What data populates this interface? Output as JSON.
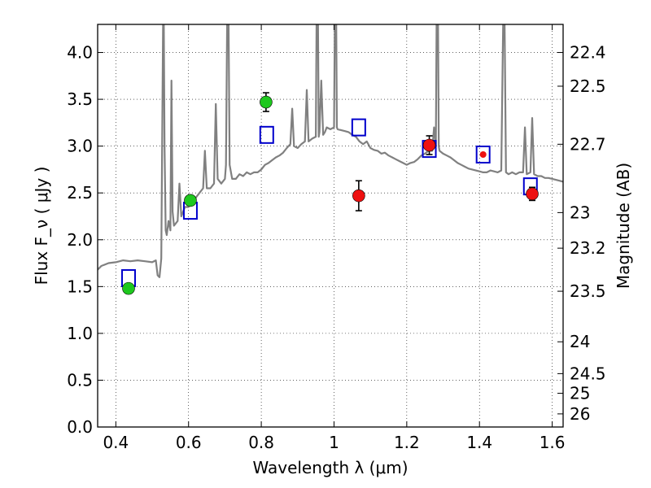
{
  "chart_data": {
    "type": "scatter",
    "title": "",
    "xlabel": "Wavelength  λ (μm)",
    "ylabel": "Flux  F_ν  ( μJy )",
    "y2label": "Magnitude (AB)",
    "xlim": [
      0.35,
      1.63
    ],
    "ylim": [
      0.0,
      4.3
    ],
    "grid": true,
    "grid_style": "dotted",
    "x_ticks": [
      0.4,
      0.6,
      0.8,
      1.0,
      1.2,
      1.4,
      1.6
    ],
    "x_tick_labels": [
      "0.4",
      "0.6",
      "0.8",
      "1",
      "1.2",
      "1.4",
      "1.6"
    ],
    "y_ticks": [
      0.0,
      0.5,
      1.0,
      1.5,
      2.0,
      2.5,
      3.0,
      3.5,
      4.0
    ],
    "y_tick_labels": [
      "0.0",
      "0.5",
      "1.0",
      "1.5",
      "2.0",
      "2.5",
      "3.0",
      "3.5",
      "4.0"
    ],
    "y2_ticks": [
      {
        "label": "22.4",
        "flux": 4.0
      },
      {
        "label": "22.5",
        "flux": 3.64
      },
      {
        "label": "22.7",
        "flux": 3.02
      },
      {
        "label": "23",
        "flux": 2.29
      },
      {
        "label": "23.2",
        "flux": 1.91
      },
      {
        "label": "23.5",
        "flux": 1.45
      },
      {
        "label": "24",
        "flux": 0.91
      },
      {
        "label": "24.5",
        "flux": 0.57
      },
      {
        "label": "25",
        "flux": 0.36
      },
      {
        "label": "26",
        "flux": 0.14
      }
    ],
    "series": [
      {
        "kind": "line",
        "color": "#808080",
        "points": [
          [
            0.35,
            1.68
          ],
          [
            0.36,
            1.72
          ],
          [
            0.38,
            1.75
          ],
          [
            0.4,
            1.76
          ],
          [
            0.42,
            1.78
          ],
          [
            0.44,
            1.77
          ],
          [
            0.46,
            1.78
          ],
          [
            0.48,
            1.77
          ],
          [
            0.5,
            1.76
          ],
          [
            0.51,
            1.78
          ],
          [
            0.515,
            1.62
          ],
          [
            0.52,
            1.6
          ],
          [
            0.525,
            1.8
          ],
          [
            0.528,
            3.3
          ],
          [
            0.53,
            4.3
          ],
          [
            0.532,
            4.3
          ],
          [
            0.534,
            3.0
          ],
          [
            0.537,
            2.1
          ],
          [
            0.54,
            2.05
          ],
          [
            0.545,
            2.2
          ],
          [
            0.55,
            2.1
          ],
          [
            0.553,
            3.7
          ],
          [
            0.556,
            2.3
          ],
          [
            0.56,
            2.15
          ],
          [
            0.57,
            2.2
          ],
          [
            0.575,
            2.6
          ],
          [
            0.58,
            2.25
          ],
          [
            0.59,
            2.35
          ],
          [
            0.6,
            2.35
          ],
          [
            0.61,
            2.4
          ],
          [
            0.62,
            2.45
          ],
          [
            0.63,
            2.5
          ],
          [
            0.64,
            2.55
          ],
          [
            0.645,
            2.95
          ],
          [
            0.65,
            2.55
          ],
          [
            0.66,
            2.55
          ],
          [
            0.67,
            2.6
          ],
          [
            0.675,
            3.45
          ],
          [
            0.68,
            2.65
          ],
          [
            0.69,
            2.6
          ],
          [
            0.7,
            2.65
          ],
          [
            0.703,
            2.8
          ],
          [
            0.706,
            4.3
          ],
          [
            0.71,
            4.3
          ],
          [
            0.713,
            2.8
          ],
          [
            0.72,
            2.65
          ],
          [
            0.73,
            2.65
          ],
          [
            0.74,
            2.7
          ],
          [
            0.75,
            2.68
          ],
          [
            0.76,
            2.72
          ],
          [
            0.77,
            2.7
          ],
          [
            0.78,
            2.72
          ],
          [
            0.79,
            2.72
          ],
          [
            0.8,
            2.75
          ],
          [
            0.81,
            2.8
          ],
          [
            0.82,
            2.82
          ],
          [
            0.83,
            2.85
          ],
          [
            0.84,
            2.88
          ],
          [
            0.85,
            2.9
          ],
          [
            0.86,
            2.93
          ],
          [
            0.87,
            2.98
          ],
          [
            0.88,
            3.02
          ],
          [
            0.885,
            3.4
          ],
          [
            0.89,
            3.0
          ],
          [
            0.9,
            2.98
          ],
          [
            0.91,
            3.02
          ],
          [
            0.92,
            3.05
          ],
          [
            0.925,
            3.6
          ],
          [
            0.93,
            3.05
          ],
          [
            0.94,
            3.08
          ],
          [
            0.95,
            3.1
          ],
          [
            0.952,
            4.3
          ],
          [
            0.956,
            4.3
          ],
          [
            0.958,
            3.1
          ],
          [
            0.96,
            3.15
          ],
          [
            0.965,
            3.7
          ],
          [
            0.97,
            3.12
          ],
          [
            0.975,
            3.15
          ],
          [
            0.98,
            3.2
          ],
          [
            0.99,
            3.18
          ],
          [
            1.0,
            3.2
          ],
          [
            1.002,
            4.3
          ],
          [
            1.006,
            4.3
          ],
          [
            1.008,
            3.2
          ],
          [
            1.01,
            3.18
          ],
          [
            1.02,
            3.17
          ],
          [
            1.03,
            3.16
          ],
          [
            1.04,
            3.15
          ],
          [
            1.05,
            3.12
          ],
          [
            1.06,
            3.1
          ],
          [
            1.07,
            3.05
          ],
          [
            1.08,
            3.02
          ],
          [
            1.09,
            3.05
          ],
          [
            1.1,
            2.98
          ],
          [
            1.11,
            2.96
          ],
          [
            1.12,
            2.95
          ],
          [
            1.13,
            2.92
          ],
          [
            1.14,
            2.93
          ],
          [
            1.15,
            2.9
          ],
          [
            1.16,
            2.88
          ],
          [
            1.17,
            2.86
          ],
          [
            1.18,
            2.84
          ],
          [
            1.19,
            2.82
          ],
          [
            1.2,
            2.8
          ],
          [
            1.21,
            2.82
          ],
          [
            1.22,
            2.83
          ],
          [
            1.23,
            2.86
          ],
          [
            1.24,
            2.9
          ],
          [
            1.25,
            2.92
          ],
          [
            1.26,
            2.95
          ],
          [
            1.27,
            2.95
          ],
          [
            1.275,
            3.2
          ],
          [
            1.28,
            3.0
          ],
          [
            1.282,
            4.3
          ],
          [
            1.286,
            4.3
          ],
          [
            1.288,
            3.0
          ],
          [
            1.29,
            2.95
          ],
          [
            1.3,
            2.92
          ],
          [
            1.31,
            2.9
          ],
          [
            1.32,
            2.88
          ],
          [
            1.33,
            2.85
          ],
          [
            1.34,
            2.82
          ],
          [
            1.35,
            2.8
          ],
          [
            1.36,
            2.78
          ],
          [
            1.37,
            2.76
          ],
          [
            1.38,
            2.75
          ],
          [
            1.4,
            2.73
          ],
          [
            1.41,
            2.72
          ],
          [
            1.42,
            2.72
          ],
          [
            1.43,
            2.74
          ],
          [
            1.44,
            2.73
          ],
          [
            1.45,
            2.72
          ],
          [
            1.46,
            2.74
          ],
          [
            1.465,
            4.3
          ],
          [
            1.469,
            4.3
          ],
          [
            1.473,
            2.72
          ],
          [
            1.48,
            2.7
          ],
          [
            1.49,
            2.72
          ],
          [
            1.5,
            2.7
          ],
          [
            1.51,
            2.72
          ],
          [
            1.52,
            2.72
          ],
          [
            1.525,
            3.2
          ],
          [
            1.53,
            2.7
          ],
          [
            1.54,
            2.72
          ],
          [
            1.545,
            3.3
          ],
          [
            1.55,
            2.7
          ],
          [
            1.56,
            2.68
          ],
          [
            1.57,
            2.68
          ],
          [
            1.58,
            2.66
          ],
          [
            1.59,
            2.66
          ],
          [
            1.6,
            2.65
          ],
          [
            1.61,
            2.64
          ],
          [
            1.62,
            2.63
          ],
          [
            1.63,
            2.62
          ]
        ]
      },
      {
        "kind": "squares",
        "color": "#0000cc",
        "points": [
          [
            0.435,
            1.59
          ],
          [
            0.605,
            2.31
          ],
          [
            0.815,
            3.12
          ],
          [
            1.068,
            3.2
          ],
          [
            1.262,
            2.97
          ],
          [
            1.41,
            2.91
          ],
          [
            1.54,
            2.57
          ]
        ]
      },
      {
        "kind": "circles",
        "color": "#1ec81e",
        "points": [
          {
            "x": 0.435,
            "y": 1.48,
            "err": 0.03
          },
          {
            "x": 0.605,
            "y": 2.42,
            "err": 0.05
          },
          {
            "x": 0.813,
            "y": 3.47,
            "err": 0.1
          }
        ]
      },
      {
        "kind": "circles",
        "color": "#ee1111",
        "points": [
          {
            "x": 1.068,
            "y": 2.47,
            "err": 0.16
          },
          {
            "x": 1.262,
            "y": 3.01,
            "err": 0.1
          },
          {
            "x": 1.41,
            "y": 2.91,
            "err": 0.0,
            "small": true
          },
          {
            "x": 1.545,
            "y": 2.49,
            "err": 0.07
          }
        ]
      }
    ]
  }
}
